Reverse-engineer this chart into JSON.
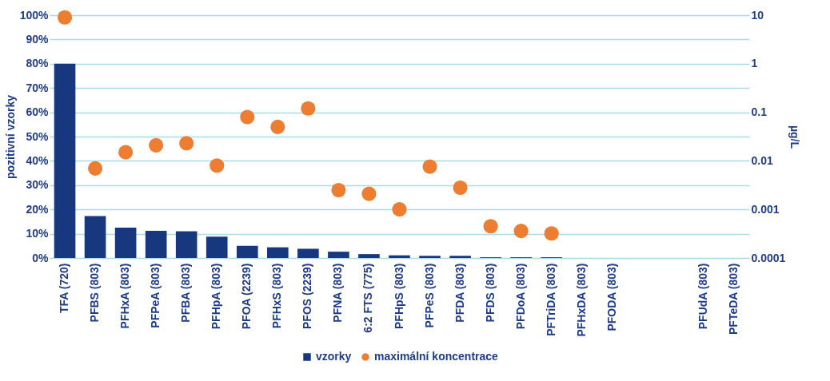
{
  "chart_data": {
    "type": "bar",
    "ylabel": "pozitivní vzorky",
    "y2label": "µg/L",
    "categories": [
      "TFA (720)",
      "PFBS (803)",
      "PFHxA (803)",
      "PFPeA (803)",
      "PFBA (803)",
      "PFHpA (803)",
      "PFOA (2239)",
      "PFHxS (803)",
      "PFOS (2239)",
      "PFNA (803)",
      "6:2 FTS (775)",
      "PFHpS (803)",
      "PFPeS (803)",
      "PFDA (803)",
      "PFDS (803)",
      "PFDoA (803)",
      "PFTriDA (803)",
      "PFHxDA (803)",
      "PFODA (803)",
      null,
      null,
      "PFUdA (803)",
      "PFTeDA (803)"
    ],
    "series": [
      {
        "name": "vzorky",
        "color": "#17377f",
        "values": [
          80,
          17.3,
          12.5,
          11.2,
          11,
          8.8,
          5,
          4.4,
          3.8,
          2.6,
          1.6,
          1.1,
          0.9,
          0.9,
          0.3,
          0.3,
          0.3,
          0,
          0,
          0,
          0,
          0,
          0
        ]
      },
      {
        "name": "maximální koncentrace",
        "type": "scatter",
        "axis": "y2",
        "color": "#ed7d31",
        "values": [
          9,
          0.007,
          0.015,
          0.021,
          0.023,
          0.008,
          0.08,
          0.05,
          0.12,
          0.0025,
          0.0021,
          0.001,
          0.0076,
          0.0028,
          0.00045,
          0.00036,
          0.00032,
          null,
          null,
          null,
          null,
          null,
          null
        ]
      }
    ],
    "ylim": [
      0,
      100
    ],
    "yticks": [
      {
        "value": 0,
        "label": "0%"
      },
      {
        "value": 10,
        "label": "10%"
      },
      {
        "value": 20,
        "label": "20%"
      },
      {
        "value": 30,
        "label": "30%"
      },
      {
        "value": 40,
        "label": "40%"
      },
      {
        "value": 50,
        "label": "50%"
      },
      {
        "value": 60,
        "label": "60%"
      },
      {
        "value": 70,
        "label": "70%"
      },
      {
        "value": 80,
        "label": "80%"
      },
      {
        "value": 90,
        "label": "90%"
      },
      {
        "value": 100,
        "label": "100%"
      }
    ],
    "y2lim": [
      0.0001,
      10
    ],
    "y2ticks": [
      0.0001,
      0.001,
      0.01,
      0.1,
      1,
      10
    ],
    "log": "y2",
    "grid": "y",
    "legend": "bottom",
    "marker": "circle"
  }
}
